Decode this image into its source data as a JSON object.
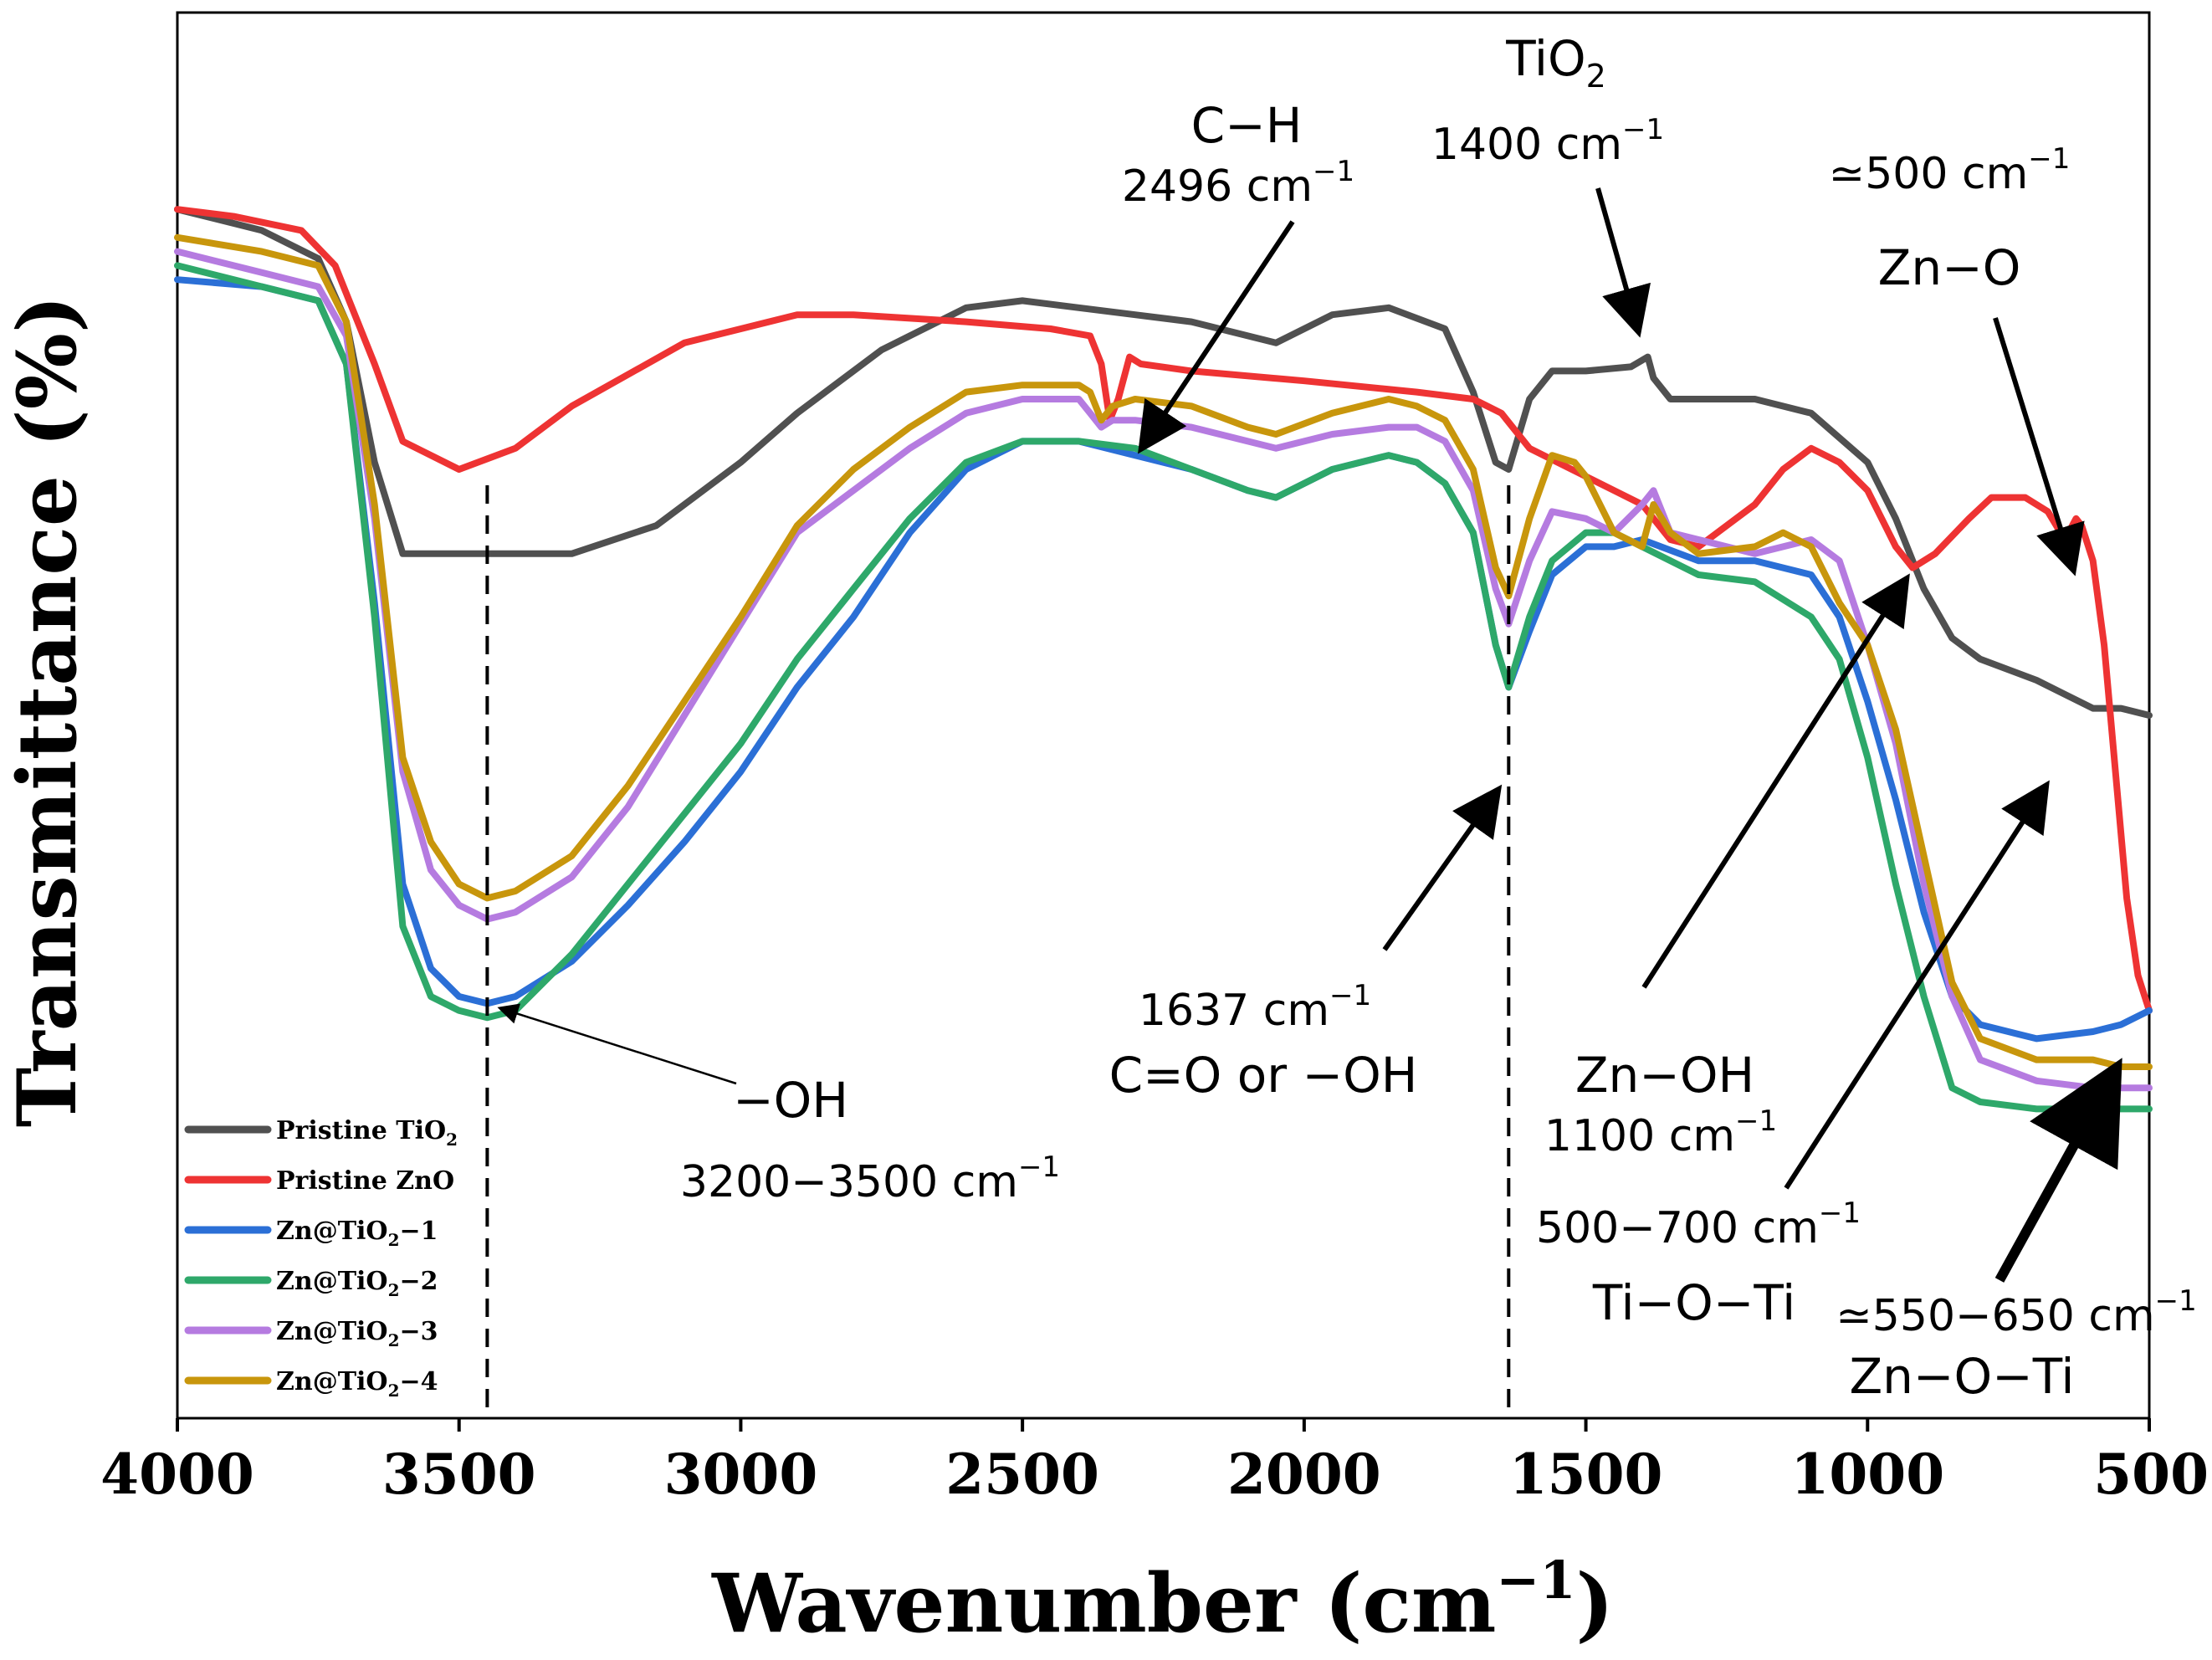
{
  "chart_data": {
    "type": "line",
    "xlabel": "Wavenumber (cm",
    "xlabel_sup": "−1",
    "xlabel_close": ")",
    "ylabel": "Transmittance (%)",
    "xlim": [
      4000,
      500
    ],
    "ylim": [
      0,
      100
    ],
    "x_ticks": [
      "4000",
      "3500",
      "3000",
      "2500",
      "2000",
      "1500",
      "1000",
      "500"
    ],
    "series": [
      {
        "name": "Pristine TiO",
        "name_sub": "2",
        "name_rest": "",
        "color": "#505050",
        "x": [
          4000,
          3850,
          3750,
          3700,
          3650,
          3600,
          3500,
          3400,
          3300,
          3150,
          3000,
          2900,
          2750,
          2600,
          2500,
          2400,
          2300,
          2200,
          2100,
          2050,
          1950,
          1850,
          1750,
          1700,
          1660,
          1637,
          1600,
          1560,
          1500,
          1420,
          1390,
          1380,
          1350,
          1300,
          1200,
          1100,
          1000,
          950,
          900,
          850,
          800,
          700,
          650,
          600,
          550,
          500
        ],
        "y": [
          86,
          84.5,
          82.5,
          78,
          68,
          61.5,
          61.5,
          61.5,
          61.5,
          63.5,
          68,
          71.5,
          76,
          79,
          79.5,
          79,
          78.5,
          78,
          77,
          76.5,
          78.5,
          79,
          77.5,
          73,
          68,
          67.5,
          72.5,
          74.5,
          74.5,
          74.8,
          75.5,
          74,
          72.5,
          72.5,
          72.5,
          71.5,
          68,
          64,
          59,
          55.5,
          54,
          52.5,
          51.5,
          50.5,
          50.5,
          50
        ]
      },
      {
        "name": "Pristine ZnO",
        "name_sub": "",
        "name_rest": "",
        "color": "#EE3333",
        "x": [
          4000,
          3900,
          3780,
          3720,
          3650,
          3600,
          3500,
          3400,
          3300,
          3100,
          2900,
          2800,
          2600,
          2450,
          2380,
          2360,
          2345,
          2330,
          2310,
          2290,
          2200,
          2000,
          1800,
          1700,
          1650,
          1600,
          1500,
          1450,
          1400,
          1380,
          1350,
          1300,
          1200,
          1150,
          1100,
          1050,
          1000,
          950,
          920,
          880,
          820,
          780,
          720,
          680,
          650,
          630,
          620,
          600,
          580,
          560,
          540,
          520,
          500
        ],
        "y": [
          86,
          85.5,
          84.5,
          82,
          75,
          69.5,
          67.5,
          69,
          72,
          76.5,
          78.5,
          78.5,
          78,
          77.5,
          77,
          75,
          71,
          72.5,
          75.5,
          75,
          74.5,
          73.8,
          73,
          72.5,
          71.5,
          69,
          67,
          66,
          65,
          64,
          62.5,
          62,
          65,
          67.5,
          69,
          68,
          66,
          62,
          60.5,
          61.5,
          64,
          65.5,
          65.5,
          64.5,
          62.5,
          64,
          63.5,
          61,
          55,
          46,
          37,
          31.5,
          29
        ]
      },
      {
        "name": "Zn@TiO",
        "name_sub": "2",
        "name_rest": "−1",
        "color": "#2B6FD6",
        "x": [
          4000,
          3850,
          3750,
          3700,
          3650,
          3600,
          3550,
          3500,
          3450,
          3400,
          3300,
          3200,
          3100,
          3000,
          2900,
          2800,
          2700,
          2600,
          2500,
          2400,
          2300,
          2200,
          2100,
          2050,
          1950,
          1850,
          1800,
          1750,
          1700,
          1660,
          1637,
          1600,
          1560,
          1500,
          1450,
          1400,
          1300,
          1200,
          1100,
          1050,
          1000,
          950,
          900,
          850,
          800,
          700,
          600,
          550,
          500
        ],
        "y": [
          81,
          80.5,
          79.5,
          75,
          58,
          38,
          32,
          30,
          29.5,
          30,
          32.5,
          36.5,
          41,
          46,
          52,
          57,
          63,
          67.5,
          69.5,
          69.5,
          68.5,
          67.5,
          66,
          65.5,
          67.5,
          68.5,
          68,
          66.5,
          63,
          55,
          52,
          56,
          60,
          62,
          62,
          62.5,
          61,
          61,
          60,
          57,
          51,
          44,
          36,
          30,
          28,
          27,
          27.5,
          28,
          29
        ]
      },
      {
        "name": "Zn@TiO",
        "name_sub": "2",
        "name_rest": "−2",
        "color": "#2EA86A",
        "x": [
          4000,
          3850,
          3750,
          3700,
          3650,
          3600,
          3550,
          3500,
          3450,
          3400,
          3300,
          3200,
          3100,
          3000,
          2900,
          2800,
          2700,
          2600,
          2500,
          2400,
          2300,
          2200,
          2100,
          2050,
          1950,
          1850,
          1800,
          1750,
          1700,
          1660,
          1637,
          1600,
          1560,
          1500,
          1450,
          1400,
          1300,
          1200,
          1100,
          1050,
          1000,
          950,
          900,
          850,
          800,
          700,
          600,
          550,
          500
        ],
        "y": [
          82,
          80.5,
          79.5,
          75,
          57,
          35,
          30,
          29,
          28.5,
          29,
          33,
          38,
          43,
          48,
          54,
          59,
          64,
          68,
          69.5,
          69.5,
          69,
          67.5,
          66,
          65.5,
          67.5,
          68.5,
          68,
          66.5,
          63,
          55,
          52,
          57,
          61,
          63,
          63,
          62,
          60,
          59.5,
          57,
          54,
          47,
          38,
          30,
          23.5,
          22.5,
          22,
          22,
          22,
          22
        ]
      },
      {
        "name": "Zn@TiO",
        "name_sub": "2",
        "name_rest": "−3",
        "color": "#B57BE0",
        "x": [
          4000,
          3850,
          3750,
          3700,
          3650,
          3600,
          3550,
          3500,
          3450,
          3400,
          3300,
          3200,
          3100,
          3000,
          2900,
          2800,
          2700,
          2600,
          2500,
          2400,
          2380,
          2360,
          2340,
          2300,
          2200,
          2100,
          2050,
          1950,
          1850,
          1800,
          1750,
          1700,
          1660,
          1637,
          1600,
          1560,
          1500,
          1450,
          1400,
          1380,
          1350,
          1300,
          1200,
          1100,
          1050,
          1000,
          950,
          900,
          850,
          800,
          700,
          600,
          550,
          500
        ],
        "y": [
          83,
          81.5,
          80.5,
          77,
          64,
          46,
          39,
          36.5,
          35.5,
          36,
          38.5,
          43.5,
          50,
          56.5,
          63,
          66,
          69,
          71.5,
          72.5,
          72.5,
          71.5,
          70.5,
          71,
          71,
          70.5,
          69.5,
          69,
          70,
          70.5,
          70.5,
          69.5,
          66,
          59,
          56.5,
          61,
          64.5,
          64,
          63,
          65,
          66,
          63,
          62.5,
          61.5,
          62.5,
          61,
          55,
          48,
          38,
          30,
          25.5,
          24,
          23.5,
          23.5,
          23.5
        ]
      },
      {
        "name": "Zn@TiO",
        "name_sub": "2",
        "name_rest": "−4",
        "color": "#C8960C",
        "x": [
          4000,
          3850,
          3750,
          3700,
          3650,
          3600,
          3550,
          3500,
          3450,
          3400,
          3300,
          3200,
          3100,
          3000,
          2900,
          2800,
          2700,
          2600,
          2500,
          2400,
          2380,
          2360,
          2340,
          2300,
          2200,
          2100,
          2050,
          1950,
          1850,
          1800,
          1750,
          1700,
          1660,
          1637,
          1600,
          1560,
          1520,
          1500,
          1450,
          1400,
          1380,
          1350,
          1300,
          1200,
          1150,
          1100,
          1050,
          1000,
          950,
          900,
          850,
          800,
          700,
          600,
          550,
          500
        ],
        "y": [
          84,
          83,
          82,
          78,
          65,
          47,
          41,
          38,
          37,
          37.5,
          40,
          45,
          51,
          57,
          63.5,
          67.5,
          70.5,
          73,
          73.5,
          73.5,
          73,
          71,
          72,
          72.5,
          72,
          70.5,
          70,
          71.5,
          72.5,
          72,
          71,
          67.5,
          60.5,
          58.5,
          64,
          68.5,
          68,
          67,
          63,
          62,
          65,
          63,
          61.5,
          62,
          63,
          62,
          58,
          55,
          49,
          40,
          31,
          27,
          25.5,
          25.5,
          25,
          25
        ]
      }
    ],
    "reference_lines": [
      {
        "name": "oh-line",
        "x": 3450
      },
      {
        "name": "1637-line",
        "x": 1637
      }
    ],
    "annotations": {
      "ch_title": "C−H",
      "ch_value": "2496 cm",
      "tio2_title": "TiO",
      "tio2_sub": "2",
      "tio2_value": "1400 cm",
      "zno_value": "≃500 cm",
      "zno_title": "Zn−O",
      "c1637_value": "1637 cm",
      "c1637_title": "C=O or −OH",
      "oh_title": "−OH",
      "oh_value": "3200−3500 cm",
      "znoh_title": "Zn−OH",
      "znoh_value": "1100 cm",
      "tioti_value": "500−700 cm",
      "tioti_title": "Ti−O−Ti",
      "znoti_value": "≃550−650 cm",
      "znoti_title": "Zn−O−Ti",
      "unit_sup": "−1"
    }
  }
}
